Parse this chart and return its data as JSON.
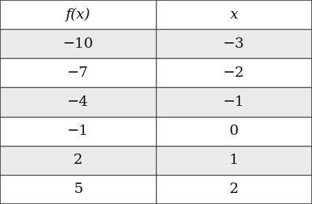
{
  "headers": [
    "f(x)",
    "x"
  ],
  "rows": [
    [
      "−10",
      "−3"
    ],
    [
      "−7",
      "−2"
    ],
    [
      "−4",
      "−1"
    ],
    [
      "−1",
      "0"
    ],
    [
      "2",
      "1"
    ],
    [
      "5",
      "2"
    ]
  ],
  "shaded_rows": [
    0,
    2,
    4
  ],
  "shaded_color": "#ebebeb",
  "white_color": "#ffffff",
  "border_color": "#444444",
  "text_color": "#111111",
  "header_bg": "#ffffff",
  "fig_width": 4.5,
  "fig_height": 2.95,
  "font_size": 15,
  "header_font_size": 15
}
